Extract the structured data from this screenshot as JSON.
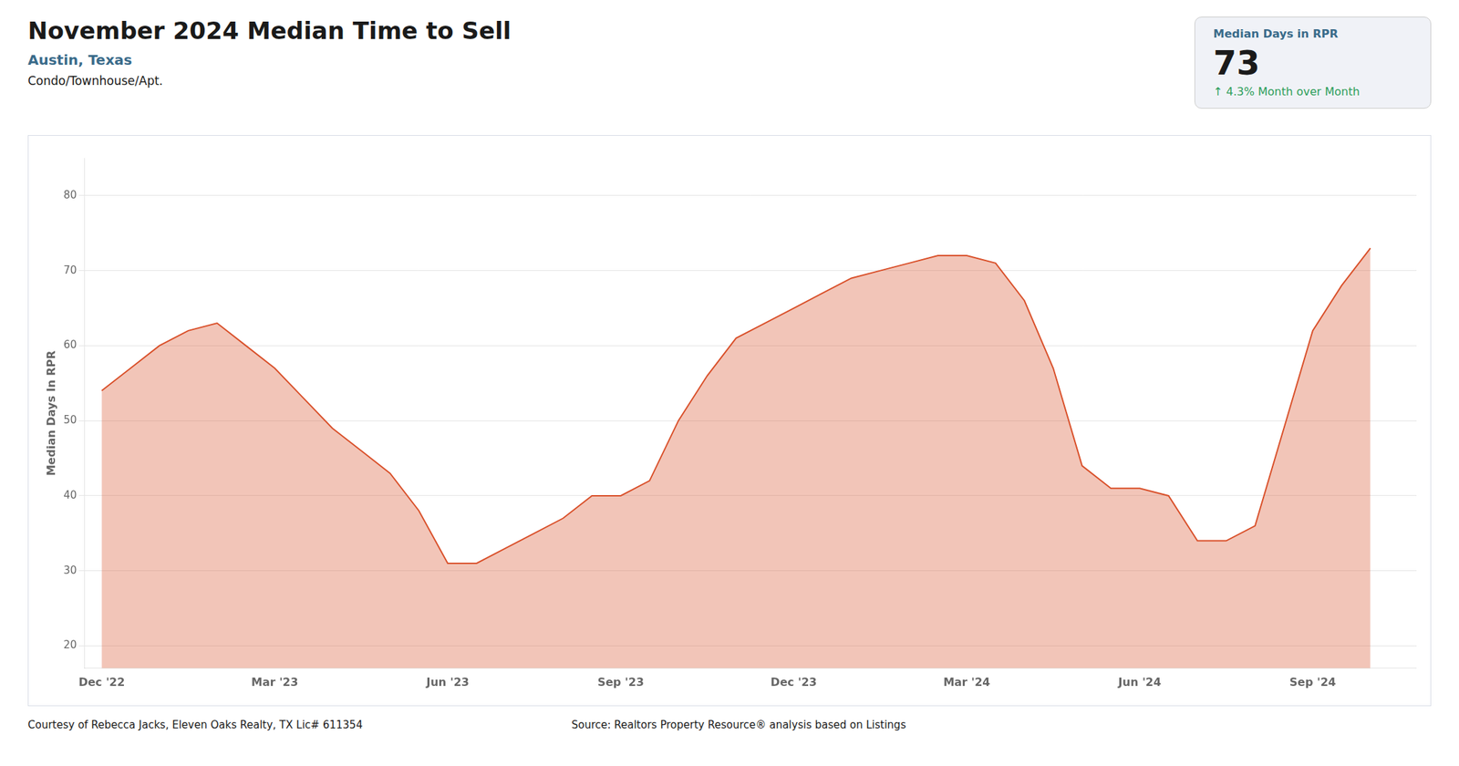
{
  "chart_data": {
    "type": "line",
    "title": "November 2024 Median Time to Sell",
    "subtitle": "Austin, Texas",
    "annotations": [
      "Condo/Townhouse/Apt.",
      "Median Days in RPR",
      "73",
      "↑  4.3% Month over Month",
      "Courtesy of Rebecca Jacks, Eleven Oaks Realty, TX Lic# 611354",
      "Source: Realtors Property Resource® analysis based on Listings"
    ],
    "ylabel": "Median Days In RPR",
    "x": [
      0,
      0.5,
      1,
      1.5,
      2,
      2.5,
      3,
      3.5,
      4,
      4.5,
      5,
      5.5,
      6,
      6.5,
      7,
      7.5,
      8,
      8.5,
      9,
      9.5,
      10,
      10.5,
      11,
      11.5,
      12,
      12.5,
      13,
      13.5,
      14,
      14.5,
      15,
      15.5,
      16,
      16.5,
      17,
      17.5,
      18,
      18.5,
      19,
      19.5,
      20,
      20.5,
      21,
      21.5,
      22
    ],
    "values": [
      54,
      57,
      60,
      62,
      63,
      60,
      57,
      53,
      49,
      46,
      43,
      38,
      31,
      31,
      33,
      35,
      37,
      40,
      40,
      42,
      50,
      56,
      61,
      63,
      65,
      67,
      69,
      70,
      71,
      72,
      72,
      71,
      66,
      57,
      44,
      41,
      41,
      40,
      34,
      34,
      36,
      49,
      62,
      68,
      73
    ],
    "color": "#d9502a",
    "xlim": [
      -0.3,
      22.8
    ],
    "xticks": [
      {
        "value": 0,
        "label": "Dec '22"
      },
      {
        "value": 3,
        "label": "Mar '23"
      },
      {
        "value": 6,
        "label": "Jun '23"
      },
      {
        "value": 9,
        "label": "Sep '23"
      },
      {
        "value": 12,
        "label": "Dec '23"
      },
      {
        "value": 15,
        "label": "Mar '24"
      },
      {
        "value": 18,
        "label": "Jun '24"
      },
      {
        "value": 21,
        "label": "Sep '24"
      }
    ],
    "ylim": [
      17,
      85
    ],
    "yticks": [
      20,
      30,
      40,
      50,
      60,
      70,
      80
    ],
    "grid": "y"
  }
}
